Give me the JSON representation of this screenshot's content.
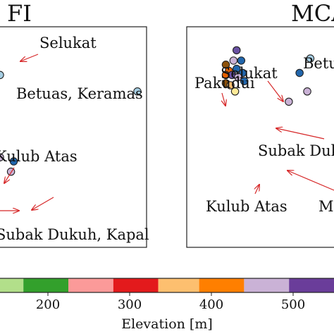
{
  "chart_data": [
    {
      "type": "scatter",
      "title": "FI",
      "points": [
        {
          "x": 0.0,
          "y": 0.8,
          "color": "#a6cee3"
        },
        {
          "x": 1.0,
          "y": 0.72,
          "color": "#a6cee3"
        },
        {
          "x": 0.0,
          "y": 0.4,
          "color": "#cab2d6"
        },
        {
          "x": 0.1,
          "y": 0.38,
          "color": "#2166ac"
        },
        {
          "x": 0.08,
          "y": 0.33,
          "color": "#cab2d6"
        }
      ],
      "annotations": [
        {
          "label": "Selukat"
        },
        {
          "label": "Betuas, Keramas"
        },
        {
          "label": "Kulub Atas"
        },
        {
          "label": "Subak Dukuh, Kapal"
        }
      ]
    },
    {
      "type": "scatter",
      "title": "MCA",
      "points": [
        {
          "x": 0.32,
          "y": 0.92,
          "color": "#6a51a3"
        },
        {
          "x": 0.3,
          "y": 0.87,
          "color": "#cab2d6"
        },
        {
          "x": 0.35,
          "y": 0.87,
          "color": "#2166ac"
        },
        {
          "x": 0.25,
          "y": 0.85,
          "color": "#8c510a"
        },
        {
          "x": 0.32,
          "y": 0.83,
          "color": "#2166ac"
        },
        {
          "x": 0.27,
          "y": 0.82,
          "color": "#e66101"
        },
        {
          "x": 0.36,
          "y": 0.81,
          "color": "#2166ac"
        },
        {
          "x": 0.25,
          "y": 0.8,
          "color": "#e66101"
        },
        {
          "x": 0.29,
          "y": 0.8,
          "color": "#6a51a3"
        },
        {
          "x": 0.33,
          "y": 0.79,
          "color": "#cab2d6"
        },
        {
          "x": 0.25,
          "y": 0.76,
          "color": "#8c510a"
        },
        {
          "x": 0.28,
          "y": 0.75,
          "color": "#fdbf6f"
        },
        {
          "x": 0.37,
          "y": 0.77,
          "color": "#2166ac"
        },
        {
          "x": 0.31,
          "y": 0.72,
          "color": "#ffeb99"
        },
        {
          "x": 0.8,
          "y": 0.88,
          "color": "#a6cee3"
        },
        {
          "x": 0.73,
          "y": 0.81,
          "color": "#2166ac"
        },
        {
          "x": 0.78,
          "y": 0.72,
          "color": "#cab2d6"
        },
        {
          "x": 0.66,
          "y": 0.67,
          "color": "#cab2d6"
        }
      ],
      "annotations": [
        {
          "label": "Betua"
        },
        {
          "label": "Selukat"
        },
        {
          "label": "Pakudui"
        },
        {
          "label": "Subak Duk"
        },
        {
          "label": "Kulub Atas"
        },
        {
          "label": "M"
        }
      ]
    },
    {
      "type": "colorbar",
      "xlabel": "Elevation [m]",
      "ticks": [
        200,
        300,
        400,
        500
      ],
      "segments": [
        {
          "start": 120,
          "end": 170,
          "color": "#b2df8a"
        },
        {
          "start": 170,
          "end": 225,
          "color": "#33a02c"
        },
        {
          "start": 225,
          "end": 280,
          "color": "#fb9a99"
        },
        {
          "start": 280,
          "end": 335,
          "color": "#e31a1c"
        },
        {
          "start": 335,
          "end": 385,
          "color": "#fdbf6f"
        },
        {
          "start": 385,
          "end": 440,
          "color": "#ff7f00"
        },
        {
          "start": 440,
          "end": 495,
          "color": "#cab2d6"
        },
        {
          "start": 495,
          "end": 550,
          "color": "#6a3d9a"
        }
      ]
    }
  ]
}
